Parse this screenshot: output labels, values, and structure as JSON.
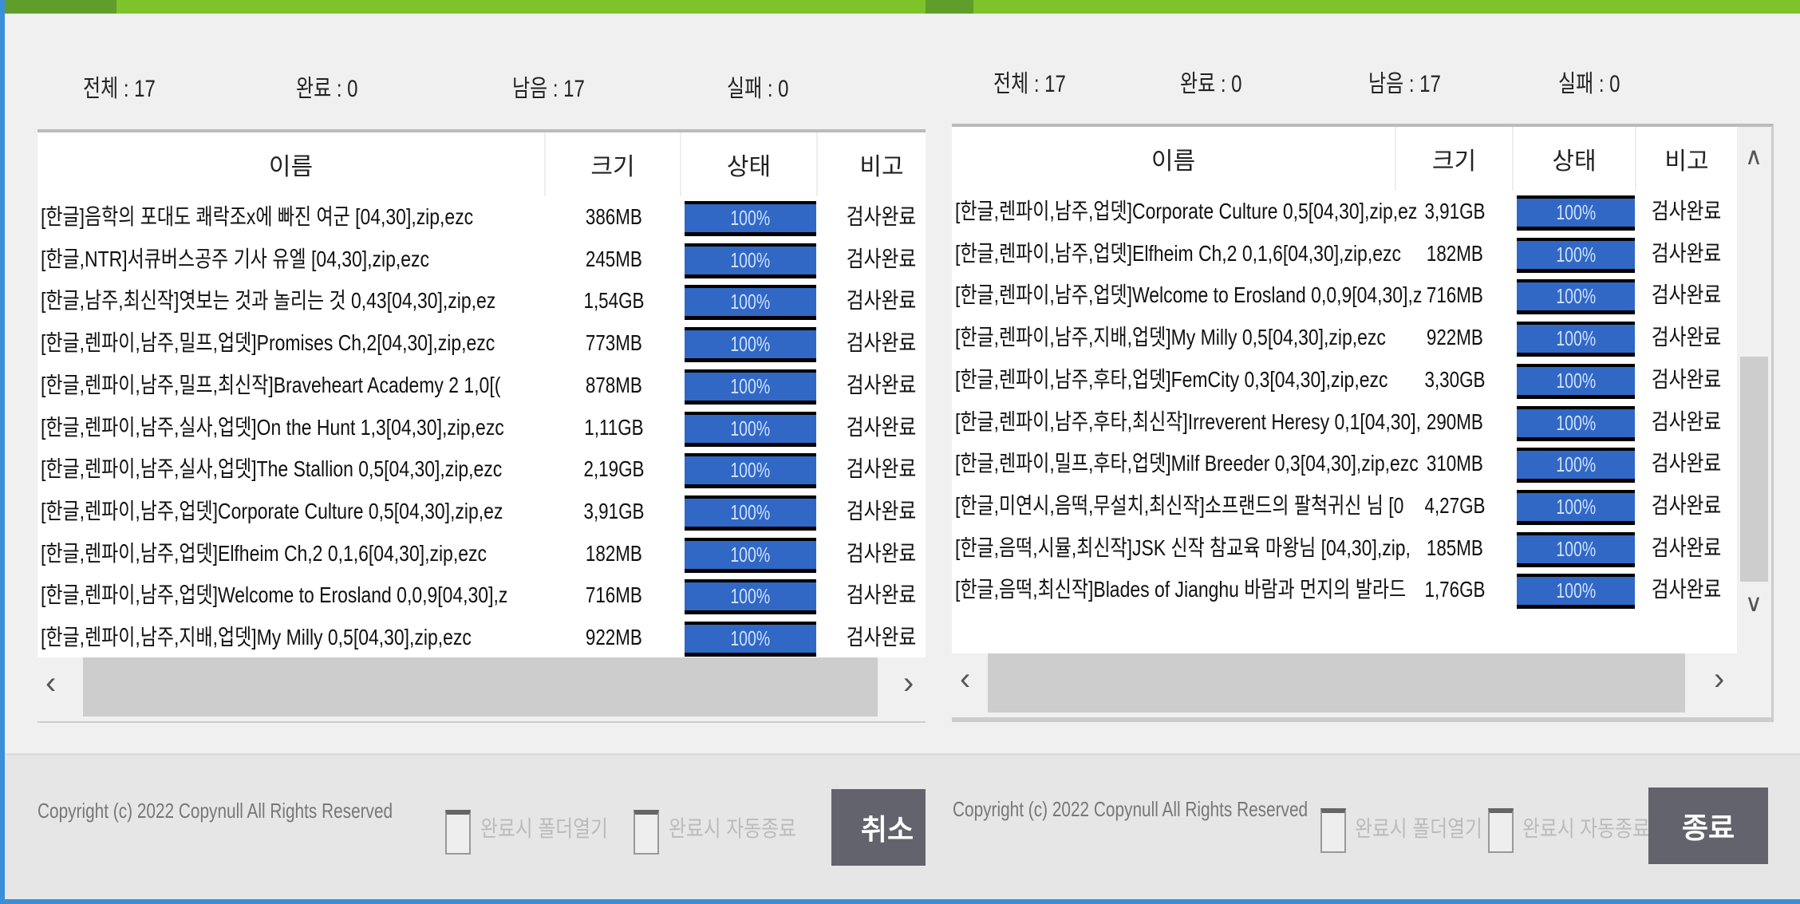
{
  "columns": {
    "name": "이름",
    "size": "크기",
    "status": "상태",
    "note": "비고"
  },
  "colors": {
    "accent": "#7cc42a",
    "progress": "#3168c5",
    "button": "#63636e"
  },
  "left": {
    "stats": {
      "total": "전체 : 17",
      "done": "완료 : 0",
      "remaining": "남음 : 17",
      "failed": "실패 : 0"
    },
    "rows": [
      {
        "name": "[한글]음학의 포대도 쾌락조x에 빠진 여군 [04,30],zip,ezc",
        "size": "386MB",
        "progress": "100%",
        "note": "검사완료"
      },
      {
        "name": "[한글,NTR]서큐버스공주 기사 유엘 [04,30],zip,ezc",
        "size": "245MB",
        "progress": "100%",
        "note": "검사완료"
      },
      {
        "name": "[한글,남주,최신작]엿보는 것과 놀리는 것 0,43[04,30],zip,ez",
        "size": "1,54GB",
        "progress": "100%",
        "note": "검사완료"
      },
      {
        "name": "[한글,렌파이,남주,밀프,업뎃]Promises Ch,2[04,30],zip,ezc",
        "size": "773MB",
        "progress": "100%",
        "note": "검사완료"
      },
      {
        "name": "[한글,렌파이,남주,밀프,최신작]Braveheart Academy 2 1,0[(",
        "size": "878MB",
        "progress": "100%",
        "note": "검사완료"
      },
      {
        "name": "[한글,렌파이,남주,실사,업뎃]On the Hunt 1,3[04,30],zip,ezc",
        "size": "1,11GB",
        "progress": "100%",
        "note": "검사완료"
      },
      {
        "name": "[한글,렌파이,남주,실사,업뎃]The Stallion 0,5[04,30],zip,ezc",
        "size": "2,19GB",
        "progress": "100%",
        "note": "검사완료"
      },
      {
        "name": "[한글,렌파이,남주,업뎃]Corporate Culture 0,5[04,30],zip,ez",
        "size": "3,91GB",
        "progress": "100%",
        "note": "검사완료"
      },
      {
        "name": "[한글,렌파이,남주,업뎃]Elfheim Ch,2 0,1,6[04,30],zip,ezc",
        "size": "182MB",
        "progress": "100%",
        "note": "검사완료"
      },
      {
        "name": "[한글,렌파이,남주,업뎃]Welcome to Erosland 0,0,9[04,30],z",
        "size": "716MB",
        "progress": "100%",
        "note": "검사완료"
      },
      {
        "name": "[한글,렌파이,남주,지배,업뎃]My Milly 0,5[04,30],zip,ezc",
        "size": "922MB",
        "progress": "100%",
        "note": "검사완료"
      }
    ],
    "footer": {
      "copyright": "Copyright (c) 2022 Copynull All Rights Reserved",
      "open_folder": "완료시 폴더열기",
      "auto_exit": "완료시 자동종료",
      "button": "취소"
    }
  },
  "right": {
    "stats": {
      "total": "전체 : 17",
      "done": "완료 : 0",
      "remaining": "남음 : 17",
      "failed": "실패 : 0"
    },
    "rows": [
      {
        "name": "[한글,렌파이,남주,업뎃]Corporate Culture 0,5[04,30],zip,ez",
        "size": "3,91GB",
        "progress": "100%",
        "note": "검사완료"
      },
      {
        "name": "[한글,렌파이,남주,업뎃]Elfheim Ch,2 0,1,6[04,30],zip,ezc",
        "size": "182MB",
        "progress": "100%",
        "note": "검사완료"
      },
      {
        "name": "[한글,렌파이,남주,업뎃]Welcome to Erosland 0,0,9[04,30],z",
        "size": "716MB",
        "progress": "100%",
        "note": "검사완료"
      },
      {
        "name": "[한글,렌파이,남주,지배,업뎃]My Milly 0,5[04,30],zip,ezc",
        "size": "922MB",
        "progress": "100%",
        "note": "검사완료"
      },
      {
        "name": "[한글,렌파이,남주,후타,업뎃]FemCity 0,3[04,30],zip,ezc",
        "size": "3,30GB",
        "progress": "100%",
        "note": "검사완료"
      },
      {
        "name": "[한글,렌파이,남주,후타,최신작]Irreverent Heresy 0,1[04,30],",
        "size": "290MB",
        "progress": "100%",
        "note": "검사완료"
      },
      {
        "name": "[한글,렌파이,밀프,후타,업뎃]Milf Breeder 0,3[04,30],zip,ezc",
        "size": "310MB",
        "progress": "100%",
        "note": "검사완료"
      },
      {
        "name": "[한글,미연시,음떡,무설치,최신작]소프랜드의 팔척귀신 님 [0",
        "size": "4,27GB",
        "progress": "100%",
        "note": "검사완료"
      },
      {
        "name": "[한글,음떡,시뮬,최신작]JSK 신작 참교육 마왕님 [04,30],zip,",
        "size": "185MB",
        "progress": "100%",
        "note": "검사완료"
      },
      {
        "name": "[한글,음떡,최신작]Blades of Jianghu 바람과 먼지의 발라드",
        "size": "1,76GB",
        "progress": "100%",
        "note": "검사완료"
      }
    ],
    "footer": {
      "copyright": "Copyright (c) 2022 Copynull All Rights Reserved",
      "open_folder": "완료시 폴더열기",
      "auto_exit": "완료시 자동종료",
      "button": "종료"
    }
  }
}
